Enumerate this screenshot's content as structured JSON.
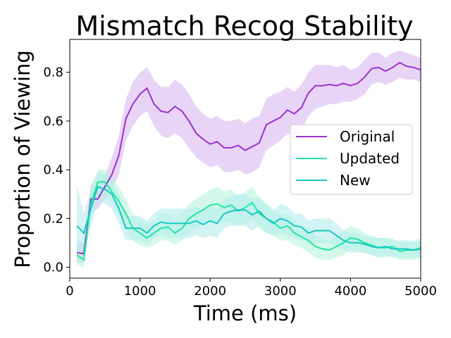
{
  "chart_data": {
    "type": "line",
    "title": "Mismatch Recog Stability",
    "xlabel": "Time (ms)",
    "ylabel": "Proportion of Viewing",
    "xlim": [
      0,
      5000
    ],
    "ylim": [
      -0.045,
      0.935
    ],
    "xticks": [
      0,
      1000,
      2000,
      3000,
      4000,
      5000
    ],
    "yticks": [
      0.0,
      0.2,
      0.4,
      0.6,
      0.8
    ],
    "xtick_labels": [
      "0",
      "1000",
      "2000",
      "3000",
      "4000",
      "5000"
    ],
    "ytick_labels": [
      "0.0",
      "0.2",
      "0.4",
      "0.6",
      "0.8"
    ],
    "grid": false,
    "legend_position": "center-right",
    "x": [
      100,
      200,
      300,
      400,
      500,
      600,
      700,
      800,
      900,
      1000,
      1100,
      1200,
      1300,
      1400,
      1500,
      1600,
      1700,
      1800,
      1900,
      2000,
      2100,
      2200,
      2300,
      2400,
      2500,
      2600,
      2700,
      2800,
      2900,
      3000,
      3100,
      3200,
      3300,
      3400,
      3500,
      3600,
      3700,
      3800,
      3900,
      4000,
      4100,
      4200,
      4300,
      4400,
      4500,
      4600,
      4700,
      4800,
      4900,
      5000
    ],
    "series": [
      {
        "name": "Original",
        "color": "#9b30d0",
        "band_color": "#d9b8f0",
        "values": [
          0.06,
          0.055,
          0.28,
          0.28,
          0.33,
          0.38,
          0.46,
          0.61,
          0.67,
          0.71,
          0.735,
          0.67,
          0.64,
          0.635,
          0.66,
          0.64,
          0.6,
          0.55,
          0.525,
          0.505,
          0.515,
          0.49,
          0.49,
          0.5,
          0.48,
          0.495,
          0.51,
          0.585,
          0.6,
          0.615,
          0.645,
          0.63,
          0.655,
          0.715,
          0.745,
          0.745,
          0.75,
          0.745,
          0.755,
          0.745,
          0.755,
          0.78,
          0.815,
          0.82,
          0.805,
          0.82,
          0.84,
          0.825,
          0.82,
          0.81
        ],
        "lower": [
          0.02,
          0.02,
          0.22,
          0.24,
          0.28,
          0.32,
          0.38,
          0.52,
          0.58,
          0.62,
          0.64,
          0.58,
          0.54,
          0.53,
          0.55,
          0.53,
          0.49,
          0.45,
          0.43,
          0.41,
          0.42,
          0.39,
          0.39,
          0.4,
          0.38,
          0.39,
          0.41,
          0.48,
          0.5,
          0.52,
          0.55,
          0.54,
          0.56,
          0.62,
          0.65,
          0.66,
          0.67,
          0.67,
          0.68,
          0.68,
          0.69,
          0.71,
          0.75,
          0.76,
          0.75,
          0.76,
          0.78,
          0.77,
          0.77,
          0.76
        ],
        "upper": [
          0.11,
          0.1,
          0.34,
          0.33,
          0.38,
          0.45,
          0.54,
          0.69,
          0.76,
          0.8,
          0.82,
          0.77,
          0.74,
          0.74,
          0.77,
          0.75,
          0.71,
          0.66,
          0.63,
          0.61,
          0.62,
          0.6,
          0.6,
          0.61,
          0.59,
          0.61,
          0.62,
          0.69,
          0.71,
          0.72,
          0.74,
          0.72,
          0.75,
          0.8,
          0.83,
          0.83,
          0.83,
          0.82,
          0.83,
          0.81,
          0.82,
          0.85,
          0.88,
          0.88,
          0.86,
          0.88,
          0.89,
          0.88,
          0.87,
          0.86
        ]
      },
      {
        "name": "Updated",
        "color": "#1ee8a0",
        "band_color": "#b7f5dc",
        "values": [
          0.05,
          0.03,
          0.26,
          0.35,
          0.35,
          0.31,
          0.27,
          0.22,
          0.16,
          0.14,
          0.12,
          0.14,
          0.16,
          0.165,
          0.14,
          0.16,
          0.2,
          0.22,
          0.235,
          0.255,
          0.26,
          0.245,
          0.255,
          0.23,
          0.245,
          0.265,
          0.22,
          0.2,
          0.185,
          0.16,
          0.17,
          0.14,
          0.125,
          0.11,
          0.085,
          0.075,
          0.07,
          0.085,
          0.1,
          0.12,
          0.115,
          0.1,
          0.09,
          0.08,
          0.08,
          0.085,
          0.065,
          0.07,
          0.07,
          0.08
        ],
        "lower": [
          0.01,
          0.0,
          0.19,
          0.29,
          0.3,
          0.26,
          0.21,
          0.16,
          0.11,
          0.09,
          0.08,
          0.09,
          0.11,
          0.11,
          0.09,
          0.11,
          0.14,
          0.16,
          0.17,
          0.19,
          0.19,
          0.18,
          0.19,
          0.17,
          0.18,
          0.2,
          0.16,
          0.14,
          0.13,
          0.11,
          0.11,
          0.09,
          0.08,
          0.06,
          0.04,
          0.03,
          0.03,
          0.04,
          0.05,
          0.07,
          0.07,
          0.06,
          0.05,
          0.04,
          0.04,
          0.05,
          0.03,
          0.03,
          0.03,
          0.04
        ],
        "upper": [
          0.1,
          0.07,
          0.33,
          0.4,
          0.4,
          0.37,
          0.33,
          0.28,
          0.22,
          0.2,
          0.17,
          0.19,
          0.22,
          0.22,
          0.2,
          0.22,
          0.26,
          0.28,
          0.3,
          0.32,
          0.33,
          0.31,
          0.32,
          0.29,
          0.31,
          0.33,
          0.28,
          0.26,
          0.24,
          0.21,
          0.22,
          0.19,
          0.17,
          0.16,
          0.13,
          0.12,
          0.11,
          0.13,
          0.15,
          0.17,
          0.16,
          0.14,
          0.13,
          0.12,
          0.12,
          0.12,
          0.1,
          0.11,
          0.11,
          0.12
        ]
      },
      {
        "name": "New",
        "color": "#18c8c0",
        "band_color": "#b5ecec",
        "values": [
          0.17,
          0.14,
          0.24,
          0.33,
          0.32,
          0.3,
          0.24,
          0.16,
          0.16,
          0.16,
          0.14,
          0.17,
          0.185,
          0.18,
          0.18,
          0.18,
          0.18,
          0.19,
          0.175,
          0.19,
          0.18,
          0.22,
          0.23,
          0.235,
          0.235,
          0.215,
          0.23,
          0.2,
          0.18,
          0.2,
          0.19,
          0.17,
          0.165,
          0.14,
          0.15,
          0.15,
          0.15,
          0.13,
          0.11,
          0.1,
          0.1,
          0.095,
          0.085,
          0.08,
          0.085,
          0.075,
          0.075,
          0.075,
          0.07,
          0.075
        ],
        "lower": [
          0.07,
          0.06,
          0.16,
          0.27,
          0.26,
          0.24,
          0.18,
          0.11,
          0.11,
          0.11,
          0.09,
          0.12,
          0.13,
          0.12,
          0.12,
          0.12,
          0.12,
          0.13,
          0.12,
          0.13,
          0.12,
          0.16,
          0.17,
          0.17,
          0.17,
          0.15,
          0.17,
          0.14,
          0.13,
          0.14,
          0.13,
          0.12,
          0.11,
          0.09,
          0.1,
          0.1,
          0.1,
          0.08,
          0.07,
          0.06,
          0.06,
          0.06,
          0.05,
          0.04,
          0.05,
          0.04,
          0.04,
          0.04,
          0.04,
          0.04
        ],
        "upper": [
          0.34,
          0.22,
          0.32,
          0.39,
          0.38,
          0.36,
          0.3,
          0.21,
          0.21,
          0.21,
          0.19,
          0.22,
          0.24,
          0.24,
          0.24,
          0.24,
          0.24,
          0.25,
          0.23,
          0.25,
          0.24,
          0.28,
          0.29,
          0.3,
          0.3,
          0.28,
          0.29,
          0.26,
          0.23,
          0.26,
          0.25,
          0.22,
          0.22,
          0.19,
          0.2,
          0.2,
          0.2,
          0.18,
          0.15,
          0.14,
          0.14,
          0.13,
          0.12,
          0.12,
          0.12,
          0.11,
          0.11,
          0.11,
          0.1,
          0.11
        ]
      }
    ]
  }
}
